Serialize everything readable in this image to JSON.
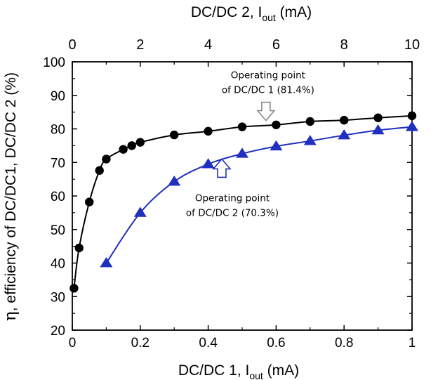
{
  "chart_data": {
    "type": "line",
    "x_bottom": {
      "label_main": "DC/DC 1, I",
      "label_sub": "out",
      "label_unit": " (mA)",
      "range": [
        0,
        1
      ],
      "ticks": [
        0,
        0.2,
        0.4,
        0.6,
        0.8,
        1
      ],
      "tick_labels": [
        "0",
        "0.2",
        "0.4",
        "0.6",
        "0.8",
        "1"
      ]
    },
    "x_top": {
      "label_main": "DC/DC 2, I",
      "label_sub": "out",
      "label_unit": " (mA)",
      "range": [
        0,
        10
      ],
      "ticks": [
        0,
        2,
        4,
        6,
        8,
        10
      ],
      "tick_labels": [
        "0",
        "2",
        "4",
        "6",
        "8",
        "10"
      ]
    },
    "y": {
      "label_eta": "η",
      "label_rest": ", efficiency of DC/DC1,  DC/DC 2 (%)",
      "range": [
        20,
        100
      ],
      "ticks": [
        20,
        30,
        40,
        50,
        60,
        70,
        80,
        90,
        100
      ],
      "tick_labels": [
        "20",
        "30",
        "40",
        "50",
        "60",
        "70",
        "80",
        "90",
        "100"
      ]
    },
    "grid": false,
    "series": [
      {
        "marker": "circle",
        "color": "#000000",
        "x_axis": "bottom",
        "points": [
          [
            0.005,
            32.5
          ],
          [
            0.02,
            44.5
          ],
          [
            0.05,
            58.2
          ],
          [
            0.08,
            67.6
          ],
          [
            0.1,
            71.0
          ],
          [
            0.15,
            73.9
          ],
          [
            0.175,
            75.0
          ],
          [
            0.2,
            76.0
          ],
          [
            0.3,
            78.2
          ],
          [
            0.4,
            79.3
          ],
          [
            0.5,
            80.6
          ],
          [
            0.6,
            81.2
          ],
          [
            0.7,
            82.2
          ],
          [
            0.8,
            82.6
          ],
          [
            0.9,
            83.3
          ],
          [
            1.0,
            83.9
          ]
        ]
      },
      {
        "marker": "triangle",
        "color": "#1f2fbf",
        "x_axis": "top",
        "points": [
          [
            1,
            40.0
          ],
          [
            2,
            55.0
          ],
          [
            3,
            64.3
          ],
          [
            4,
            69.5
          ],
          [
            5,
            72.6
          ],
          [
            6,
            74.8
          ],
          [
            7,
            76.4
          ],
          [
            8,
            78.1
          ],
          [
            9,
            79.6
          ],
          [
            10,
            80.6
          ]
        ]
      }
    ],
    "annotations": [
      {
        "line1": "Operating point",
        "line2": "of DC/DC 1 (81.4%)",
        "arrow": "down",
        "arrow_color": "#8c8c8c",
        "at_x": 0.57,
        "at_y": 82.5,
        "axis": "bottom"
      },
      {
        "line1": "Operating point",
        "line2": "of DC/DC 2 (70.3%)",
        "arrow": "up",
        "arrow_color": "#1f2fbf",
        "at_x": 0.44,
        "at_y": 71.0,
        "axis": "bottom"
      }
    ]
  }
}
